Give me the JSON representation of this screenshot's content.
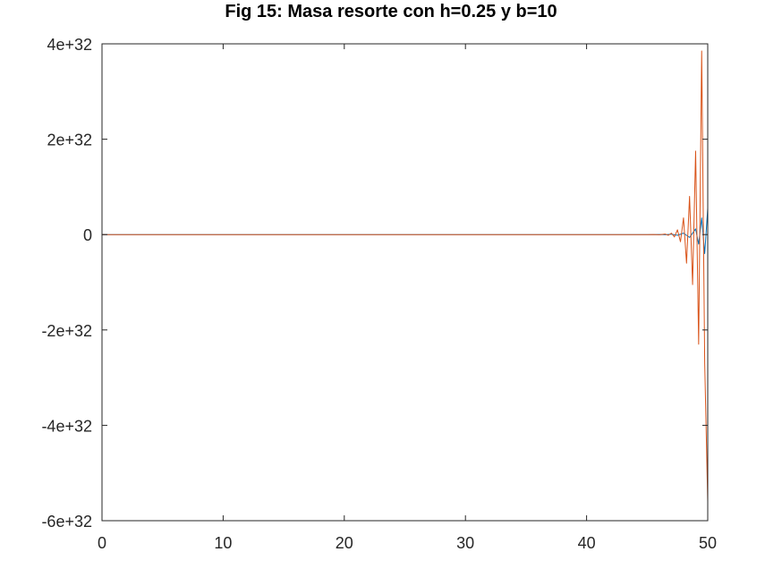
{
  "chart_data": {
    "type": "line",
    "title": "Fig 15: Masa resorte con h=0.25 y b=10",
    "xlabel": "",
    "ylabel": "",
    "xlim": [
      0,
      50
    ],
    "ylim": [
      -6e+32,
      4e+32
    ],
    "xticks": [
      0,
      10,
      20,
      30,
      40,
      50
    ],
    "xtick_labels": [
      "0",
      "10",
      "20",
      "30",
      "40",
      "50"
    ],
    "yticks": [
      4e+32,
      2e+32,
      0,
      -2e+32,
      -4e+32,
      -6e+32
    ],
    "ytick_labels": [
      "4e+32",
      "2e+32",
      "0",
      "-2e+32",
      "-4e+32",
      "-6e+32"
    ],
    "grid": false,
    "series": [
      {
        "color": "#d95319",
        "x": [
          0,
          45.0,
          45.5,
          46.0,
          46.5,
          46.75,
          47.0,
          47.25,
          47.5,
          47.75,
          48.0,
          48.25,
          48.5,
          48.75,
          49.0,
          49.25,
          49.5,
          49.75,
          50.0
        ],
        "y": [
          0,
          0,
          2e+29,
          -4e+29,
          1e+30,
          -1.5e+30,
          3e+30,
          -5e+30,
          1e+31,
          -1.5e+31,
          3.5e+31,
          -6e+31,
          8e+31,
          -1.05e+32,
          1.75e+32,
          -2.3e+32,
          3.85e+32,
          -2.7e+32,
          -5.6e+32
        ]
      },
      {
        "color": "#0072bd",
        "x": [
          0,
          45.5,
          46.0,
          46.5,
          47.0,
          47.5,
          48.0,
          48.5,
          49.0,
          49.25,
          49.5,
          49.75,
          50.0
        ],
        "y": [
          0,
          0,
          2e+29,
          -4e+29,
          8e+29,
          -1.5e+30,
          3e+30,
          -6e+30,
          1.2e+31,
          -2e+31,
          3.5e+31,
          -4e+31,
          5.5e+31
        ]
      }
    ]
  }
}
